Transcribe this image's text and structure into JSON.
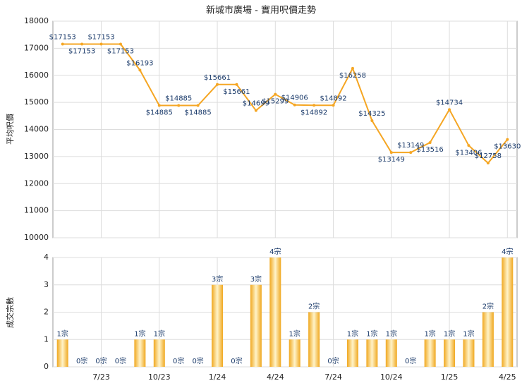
{
  "chart_data": [
    {
      "type": "line",
      "title": "新城市廣場 - 實用呎價走勢",
      "ylabel": "平均呎價",
      "color": "#f5a623",
      "values": [
        17153,
        17153,
        17153,
        17153,
        16193,
        14885,
        14885,
        14885,
        15661,
        15661,
        14699,
        15299,
        14906,
        14892,
        14892,
        16258,
        14325,
        13149,
        13149,
        13516,
        14734,
        13406,
        12758,
        13630
      ],
      "value_labels": [
        "$17153",
        "$17153",
        "$17153",
        "$17153",
        "$16193",
        "$14885",
        "$14885",
        "$14885",
        "$15661",
        "$15661",
        "$14699",
        "$15299",
        "$14906",
        "$14892",
        "$14892",
        "$16258",
        "$14325",
        "$13149",
        "$13149",
        "$13516",
        "$14734",
        "$13406",
        "$12758",
        "$13630"
      ],
      "ylim": [
        10000,
        18000
      ],
      "yticks": [
        10000,
        11000,
        12000,
        13000,
        14000,
        15000,
        16000,
        17000,
        18000
      ],
      "grid": true
    },
    {
      "type": "bar",
      "ylabel": "成交宗數",
      "color": "#f0a820",
      "categories": [
        null,
        null,
        "7/23",
        null,
        null,
        "10/23",
        null,
        null,
        "1/24",
        null,
        null,
        "4/24",
        null,
        null,
        "7/24",
        null,
        null,
        "10/24",
        null,
        null,
        "1/25",
        null,
        null,
        "4/25"
      ],
      "values": [
        1,
        0,
        0,
        0,
        1,
        1,
        0,
        0,
        3,
        0,
        3,
        4,
        1,
        2,
        0,
        1,
        1,
        1,
        0,
        1,
        1,
        1,
        2,
        4
      ],
      "value_labels": [
        "1宗",
        "0宗",
        "0宗",
        "0宗",
        "1宗",
        "1宗",
        "0宗",
        "0宗",
        "3宗",
        "0宗",
        "3宗",
        "4宗",
        "1宗",
        "2宗",
        "0宗",
        "1宗",
        "1宗",
        "1宗",
        "0宗",
        "1宗",
        "1宗",
        "1宗",
        "2宗",
        "4宗"
      ],
      "ylim": [
        0,
        4
      ],
      "yticks": [
        0,
        1,
        2,
        3,
        4
      ],
      "grid": true
    }
  ]
}
